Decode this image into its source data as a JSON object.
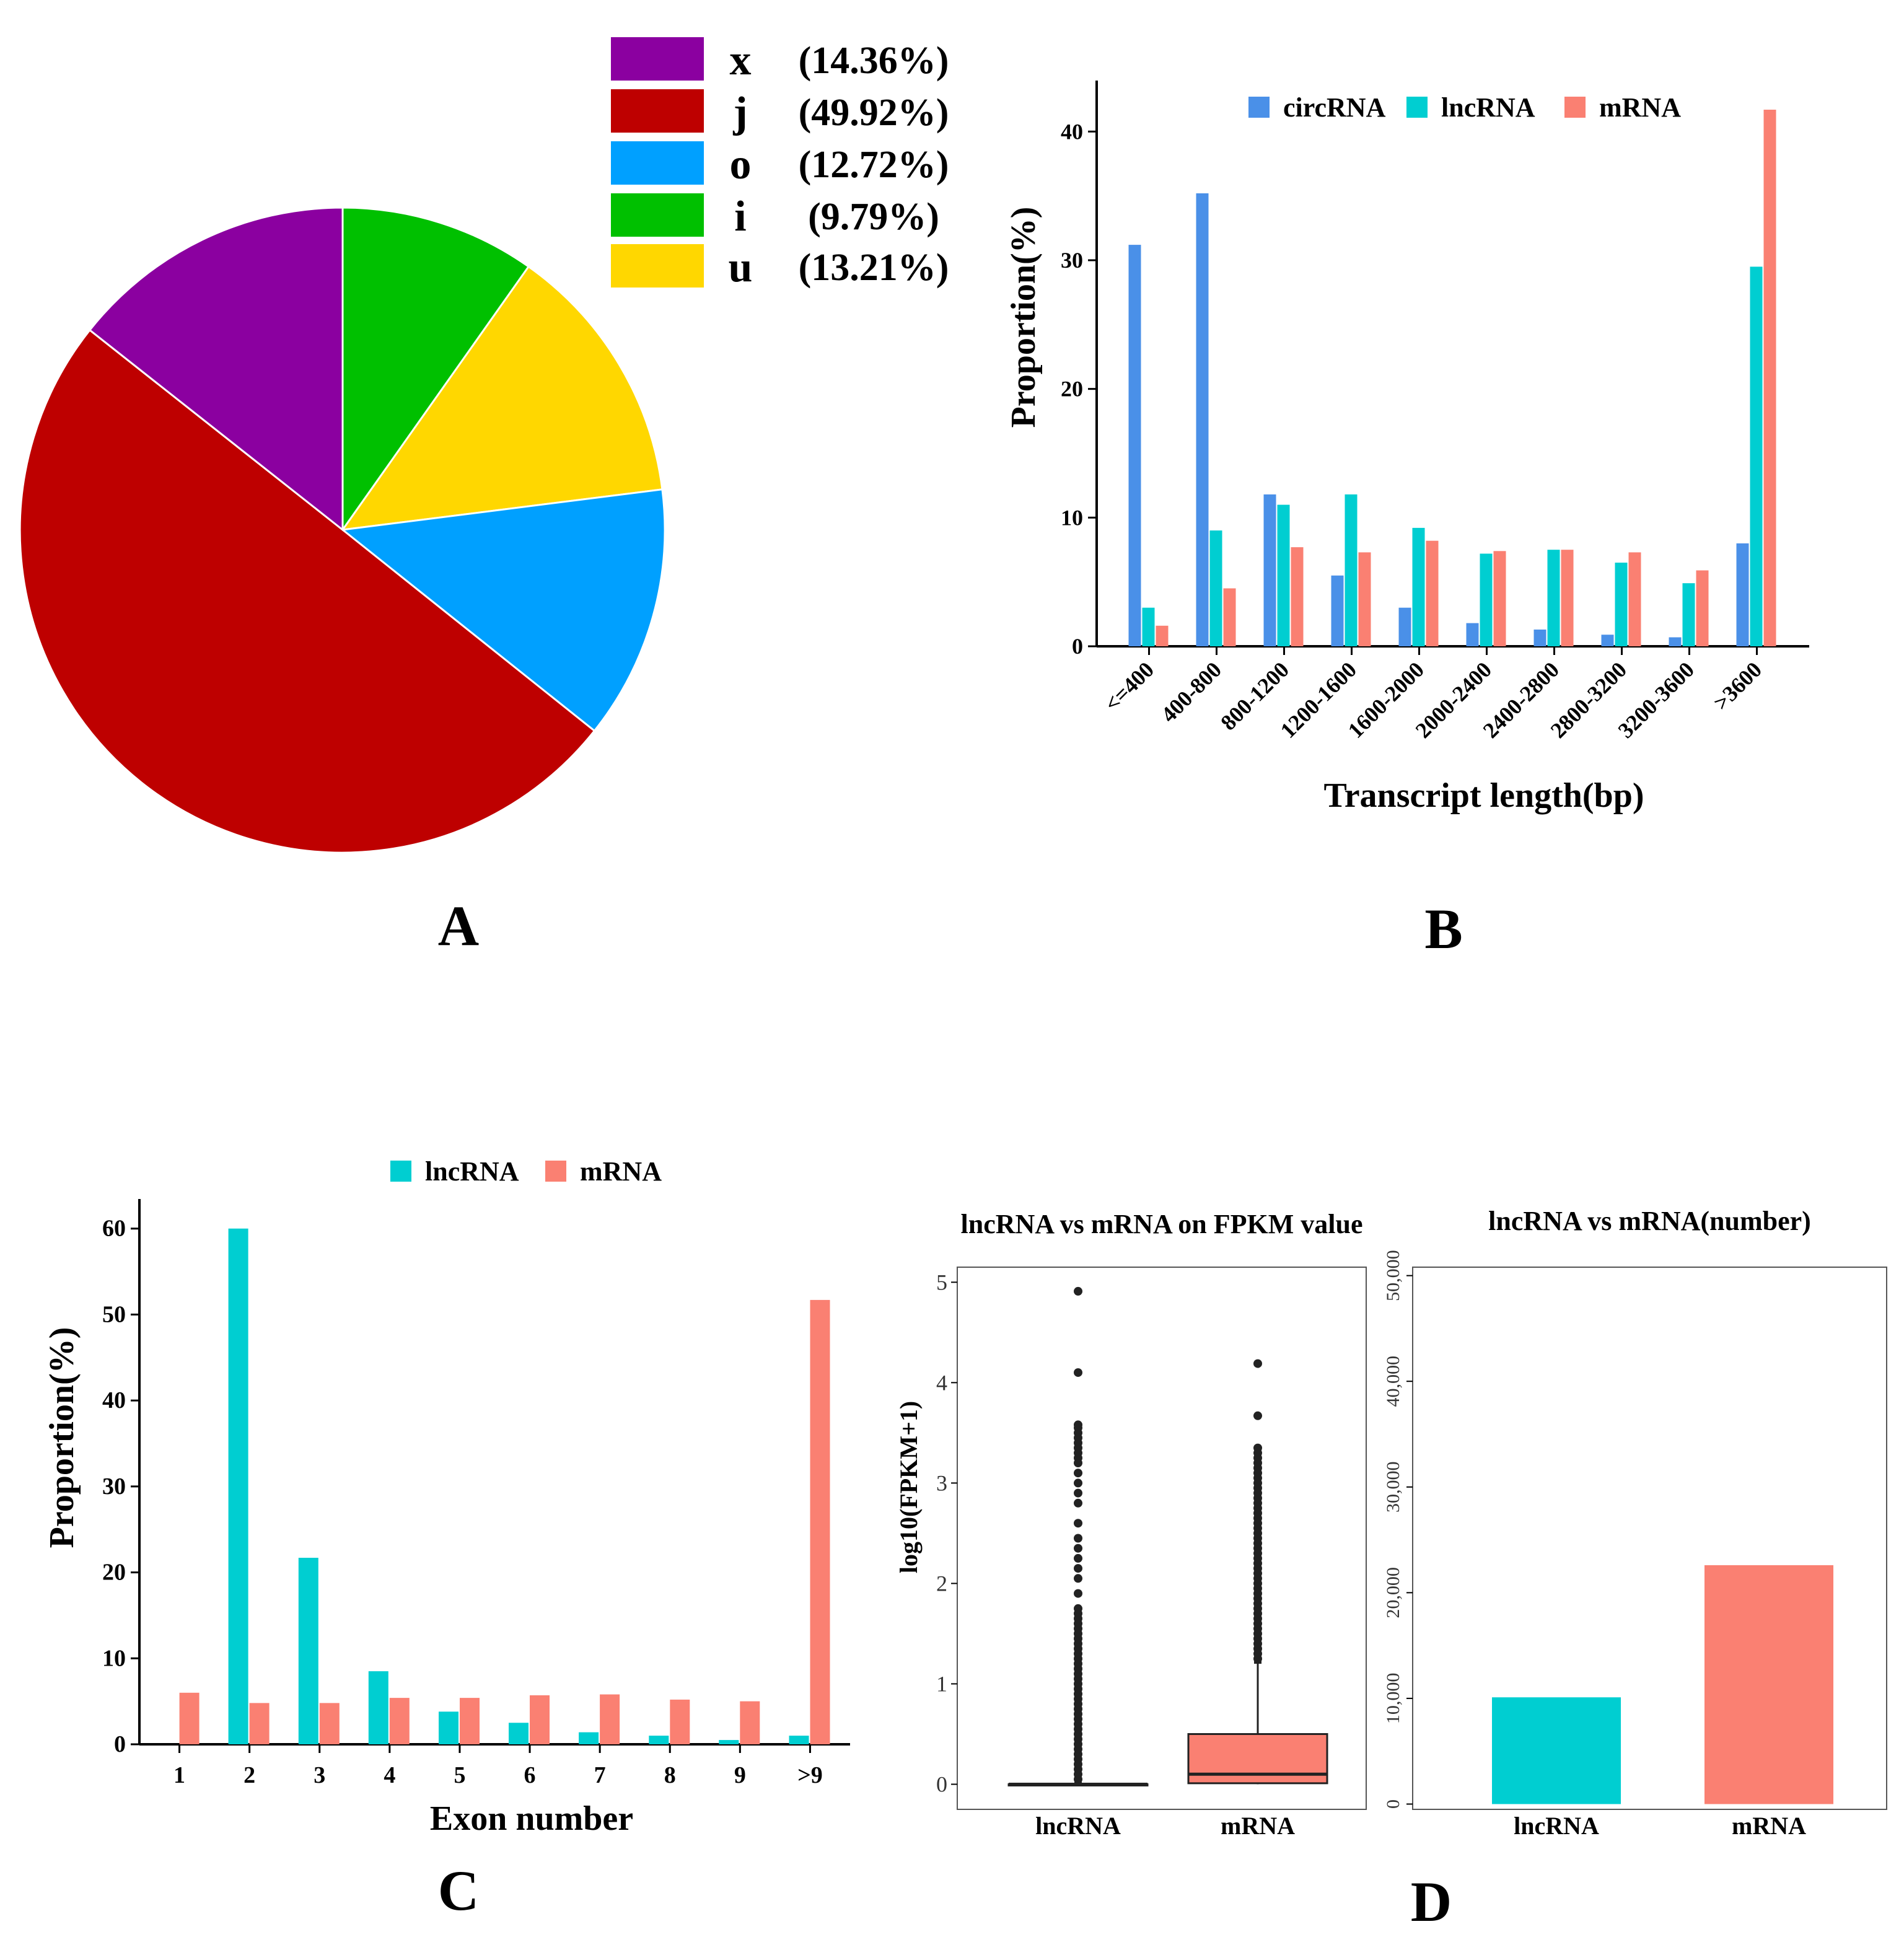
{
  "chart_data": [
    {
      "panel": "A",
      "type": "pie",
      "title": "",
      "slices": [
        {
          "key": "x",
          "label": "(14.36%)",
          "value": 14.36,
          "color": "#8B00A0"
        },
        {
          "key": "j",
          "label": "(49.92%)",
          "value": 49.92,
          "color": "#BE0000"
        },
        {
          "key": "o",
          "label": "(12.72%)",
          "value": 12.72,
          "color": "#00A0FF"
        },
        {
          "key": "i",
          "label": "(9.79%)",
          "value": 9.79,
          "color": "#00C000"
        },
        {
          "key": "u",
          "label": "(13.21%)",
          "value": 13.21,
          "color": "#FFD700"
        }
      ],
      "legend": "top-right"
    },
    {
      "panel": "B",
      "type": "bar",
      "title": "",
      "xlabel": "Transcript length(bp)",
      "ylabel": "Proportion(%)",
      "ylim": [
        0,
        43
      ],
      "yticks": [
        0,
        10,
        20,
        30,
        40
      ],
      "categories": [
        "<=400",
        "400-800",
        "800-1200",
        "1200-1600",
        "1600-2000",
        "2000-2400",
        "2400-2800",
        "2800-3200",
        "3200-3600",
        ">3600"
      ],
      "series": [
        {
          "name": "circRNA",
          "color": "#4A90E8",
          "values": [
            31.2,
            35.2,
            11.8,
            5.5,
            3.0,
            1.8,
            1.3,
            0.9,
            0.7,
            8.0
          ]
        },
        {
          "name": "lncRNA",
          "color": "#00CED1",
          "values": [
            3.0,
            9.0,
            11.0,
            11.8,
            9.2,
            7.2,
            7.5,
            6.5,
            4.9,
            29.5
          ]
        },
        {
          "name": "mRNA",
          "color": "#FA8072",
          "values": [
            1.6,
            4.5,
            7.7,
            7.3,
            8.2,
            7.4,
            7.5,
            7.3,
            5.9,
            41.7
          ]
        }
      ],
      "legend": "top"
    },
    {
      "panel": "C",
      "type": "bar",
      "title": "",
      "xlabel": "Exon number",
      "ylabel": "Proportion(%)",
      "ylim": [
        0,
        62
      ],
      "yticks": [
        0,
        10,
        20,
        30,
        40,
        50,
        60
      ],
      "categories": [
        "1",
        "2",
        "3",
        "4",
        "5",
        "6",
        "7",
        "8",
        "9",
        ">9"
      ],
      "series": [
        {
          "name": "lncRNA",
          "color": "#00CED1",
          "values": [
            0.0,
            60.0,
            21.7,
            8.5,
            3.8,
            2.5,
            1.4,
            1.0,
            0.5,
            1.0
          ]
        },
        {
          "name": "mRNA",
          "color": "#FA8072",
          "values": [
            6.0,
            4.8,
            4.8,
            5.4,
            5.4,
            5.7,
            5.8,
            5.2,
            5.0,
            51.7
          ]
        }
      ],
      "legend": "top"
    },
    {
      "panel": "D-left",
      "type": "box",
      "title": "lncRNA vs mRNA on FPKM value",
      "xlabel": "",
      "ylabel": "log10(FPKM+1)",
      "ylim": [
        -0.25,
        5.15
      ],
      "yticks": [
        0,
        1,
        2,
        3,
        4,
        5
      ],
      "categories": [
        "lncRNA",
        "mRNA"
      ],
      "boxes": [
        {
          "name": "lncRNA",
          "color": "#F08070",
          "q1": 0.0,
          "median": 0.0,
          "q3": 0.0,
          "whisker_low": 0.0,
          "whisker_high": 0.0,
          "outliers": [
            4.91,
            4.1,
            3.58,
            3.55,
            3.5,
            3.45,
            3.4,
            3.35,
            3.3,
            3.25,
            3.2,
            3.1,
            3.0,
            2.9,
            2.8,
            2.6,
            2.45,
            2.35,
            2.25,
            2.15,
            2.05,
            1.9,
            1.75,
            1.7,
            1.65,
            1.6,
            1.55,
            1.5,
            1.45,
            1.4,
            1.35,
            1.3,
            1.25,
            1.2,
            1.15,
            1.1,
            1.05,
            1.0,
            0.95,
            0.9,
            0.85,
            0.8,
            0.75,
            0.7,
            0.65,
            0.6,
            0.55,
            0.5,
            0.45,
            0.4,
            0.35,
            0.3,
            0.25,
            0.2,
            0.15,
            0.1,
            0.05
          ]
        },
        {
          "name": "mRNA",
          "color": "#FA8072",
          "q1": 0.01,
          "median": 0.1,
          "q3": 0.5,
          "whisker_low": 0.0,
          "whisker_high": 1.2,
          "outliers": [
            4.19,
            3.67,
            3.35,
            3.3,
            3.25,
            3.2,
            3.15,
            3.1,
            3.05,
            3.0,
            2.95,
            2.9,
            2.85,
            2.8,
            2.75,
            2.7,
            2.65,
            2.6,
            2.55,
            2.5,
            2.45,
            2.4,
            2.35,
            2.3,
            2.25,
            2.2,
            2.15,
            2.1,
            2.05,
            2.0,
            1.95,
            1.9,
            1.85,
            1.8,
            1.75,
            1.7,
            1.65,
            1.6,
            1.55,
            1.5,
            1.45,
            1.4,
            1.35,
            1.3,
            1.25
          ]
        }
      ]
    },
    {
      "panel": "D-right",
      "type": "bar",
      "title": "lncRNA vs mRNA(number)",
      "xlabel": "",
      "ylabel": "",
      "ylim": [
        -500,
        50800
      ],
      "yticks": [
        0,
        10000,
        20000,
        30000,
        40000,
        50000
      ],
      "ytick_labels": [
        "0",
        "10,000",
        "20,000",
        "30,000",
        "40,000",
        "50,000"
      ],
      "categories": [
        "lncRNA",
        "mRNA"
      ],
      "values": [
        10100,
        22600
      ],
      "colors": [
        "#00CED1",
        "#FA8072"
      ]
    }
  ],
  "panel_labels": [
    "A",
    "B",
    "C",
    "D"
  ]
}
